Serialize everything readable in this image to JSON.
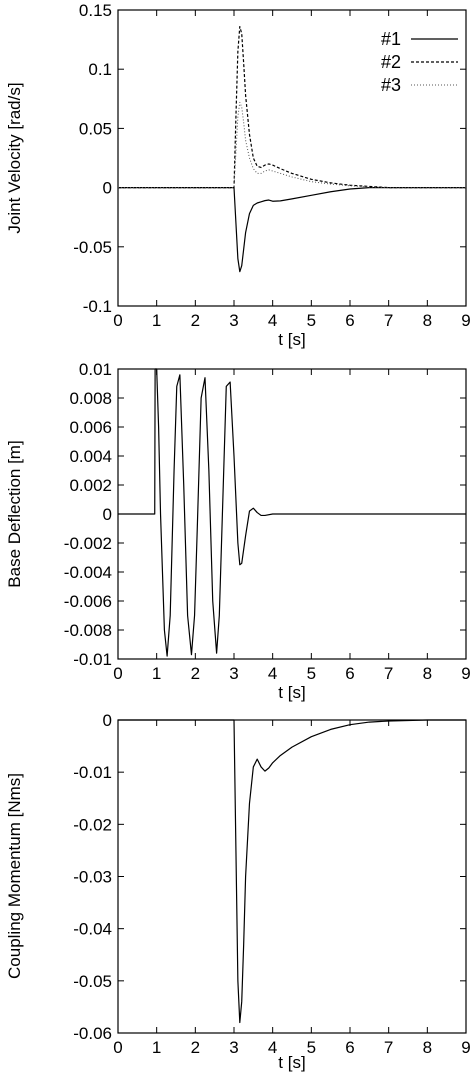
{
  "chart_data": [
    {
      "type": "line",
      "xlabel": "t [s]",
      "ylabel": "Joint Velocity [rad/s]",
      "xlim": [
        0,
        9
      ],
      "ylim": [
        -0.1,
        0.15
      ],
      "xticks": [
        "0",
        "1",
        "2",
        "3",
        "4",
        "5",
        "6",
        "7",
        "8",
        "9"
      ],
      "yticks": [
        "-0.1",
        "-0.05",
        "0",
        "0.05",
        "0.1",
        "0.15"
      ],
      "legend": "top-right",
      "series": [
        {
          "name": "#1",
          "style": "solid",
          "color": "#000000",
          "x": [
            0,
            3.0,
            3.05,
            3.1,
            3.15,
            3.2,
            3.25,
            3.3,
            3.4,
            3.5,
            3.6,
            3.7,
            3.8,
            3.9,
            4.0,
            4.2,
            4.5,
            5.0,
            5.5,
            6.0,
            6.5,
            7.0,
            9.0
          ],
          "y": [
            0,
            0,
            -0.03,
            -0.06,
            -0.071,
            -0.066,
            -0.052,
            -0.038,
            -0.022,
            -0.015,
            -0.013,
            -0.012,
            -0.011,
            -0.0105,
            -0.0115,
            -0.0112,
            -0.0095,
            -0.0065,
            -0.0035,
            -0.0012,
            0,
            0,
            0
          ]
        },
        {
          "name": "#2",
          "style": "dashed",
          "color": "#000000",
          "x": [
            0,
            3.0,
            3.05,
            3.1,
            3.15,
            3.2,
            3.25,
            3.3,
            3.4,
            3.5,
            3.6,
            3.7,
            3.8,
            3.9,
            4.0,
            4.2,
            4.5,
            5.0,
            5.5,
            6.0,
            6.5,
            7.0,
            9.0
          ],
          "y": [
            0,
            0,
            0.06,
            0.115,
            0.136,
            0.13,
            0.105,
            0.078,
            0.045,
            0.025,
            0.018,
            0.017,
            0.019,
            0.02,
            0.019,
            0.016,
            0.012,
            0.007,
            0.004,
            0.002,
            0.001,
            0,
            0
          ]
        },
        {
          "name": "#3",
          "style": "dotted",
          "color": "#000000",
          "x": [
            0,
            3.0,
            3.05,
            3.1,
            3.15,
            3.2,
            3.25,
            3.3,
            3.4,
            3.5,
            3.6,
            3.7,
            3.8,
            3.9,
            4.0,
            4.2,
            4.5,
            5.0,
            5.5,
            6.0,
            6.5,
            7.0,
            9.0
          ],
          "y": [
            0,
            0,
            0.03,
            0.06,
            0.072,
            0.068,
            0.055,
            0.04,
            0.025,
            0.016,
            0.012,
            0.012,
            0.014,
            0.015,
            0.014,
            0.012,
            0.009,
            0.005,
            0.003,
            0.0015,
            0.0005,
            0,
            0
          ]
        }
      ]
    },
    {
      "type": "line",
      "xlabel": "t [s]",
      "ylabel": "Base Deflection  [m]",
      "xlim": [
        0,
        9
      ],
      "ylim": [
        -0.01,
        0.01
      ],
      "xticks": [
        "0",
        "1",
        "2",
        "3",
        "4",
        "5",
        "6",
        "7",
        "8",
        "9"
      ],
      "yticks": [
        "-0.01",
        "-0.008",
        "-0.006",
        "-0.004",
        "-0.002",
        "0",
        "0.002",
        "0.004",
        "0.006",
        "0.008",
        "0.01"
      ],
      "series": [
        {
          "style": "solid",
          "color": "#000000",
          "x": [
            0,
            0.95,
            0.96,
            1.0,
            1.05,
            1.1,
            1.2,
            1.27,
            1.35,
            1.45,
            1.52,
            1.6,
            1.7,
            1.8,
            1.9,
            1.98,
            2.05,
            2.15,
            2.25,
            2.35,
            2.45,
            2.55,
            2.62,
            2.7,
            2.8,
            2.9,
            3.0,
            3.1,
            3.15,
            3.2,
            3.3,
            3.4,
            3.5,
            3.6,
            3.7,
            3.8,
            4.0,
            4.5,
            9.0
          ],
          "y": [
            0,
            0,
            0.01,
            0.01,
            0.006,
            0.0,
            -0.008,
            -0.0098,
            -0.007,
            0.003,
            0.0088,
            0.0096,
            0.002,
            -0.007,
            -0.0097,
            -0.007,
            -0.001,
            0.008,
            0.0094,
            0.003,
            -0.006,
            -0.0096,
            -0.007,
            0.0,
            0.0088,
            0.0091,
            0.004,
            -0.002,
            -0.0035,
            -0.0034,
            -0.0015,
            0.0002,
            0.0004,
            0.0001,
            -0.0001,
            -0.0001,
            0,
            0,
            0
          ]
        }
      ]
    },
    {
      "type": "line",
      "xlabel": "t [s]",
      "ylabel": "Coupling Momentum [Nms]",
      "xlim": [
        0,
        9
      ],
      "ylim": [
        -0.06,
        0
      ],
      "xticks": [
        "0",
        "1",
        "2",
        "3",
        "4",
        "5",
        "6",
        "7",
        "8",
        "9"
      ],
      "yticks": [
        "-0.06",
        "-0.05",
        "-0.04",
        "-0.03",
        "-0.02",
        "-0.01",
        "0"
      ],
      "series": [
        {
          "style": "solid",
          "color": "#000000",
          "x": [
            0,
            3.0,
            3.05,
            3.1,
            3.15,
            3.2,
            3.25,
            3.3,
            3.4,
            3.5,
            3.6,
            3.7,
            3.8,
            3.9,
            4.0,
            4.2,
            4.5,
            5.0,
            5.5,
            6.0,
            6.5,
            7.0,
            7.5,
            8.0,
            9.0
          ],
          "y": [
            0,
            0,
            -0.025,
            -0.05,
            -0.058,
            -0.054,
            -0.043,
            -0.03,
            -0.016,
            -0.009,
            -0.0075,
            -0.009,
            -0.0098,
            -0.0092,
            -0.0082,
            -0.0068,
            -0.0052,
            -0.0032,
            -0.0018,
            -0.0009,
            -0.0004,
            -0.0002,
            -0.0001,
            0,
            0
          ]
        }
      ]
    }
  ]
}
